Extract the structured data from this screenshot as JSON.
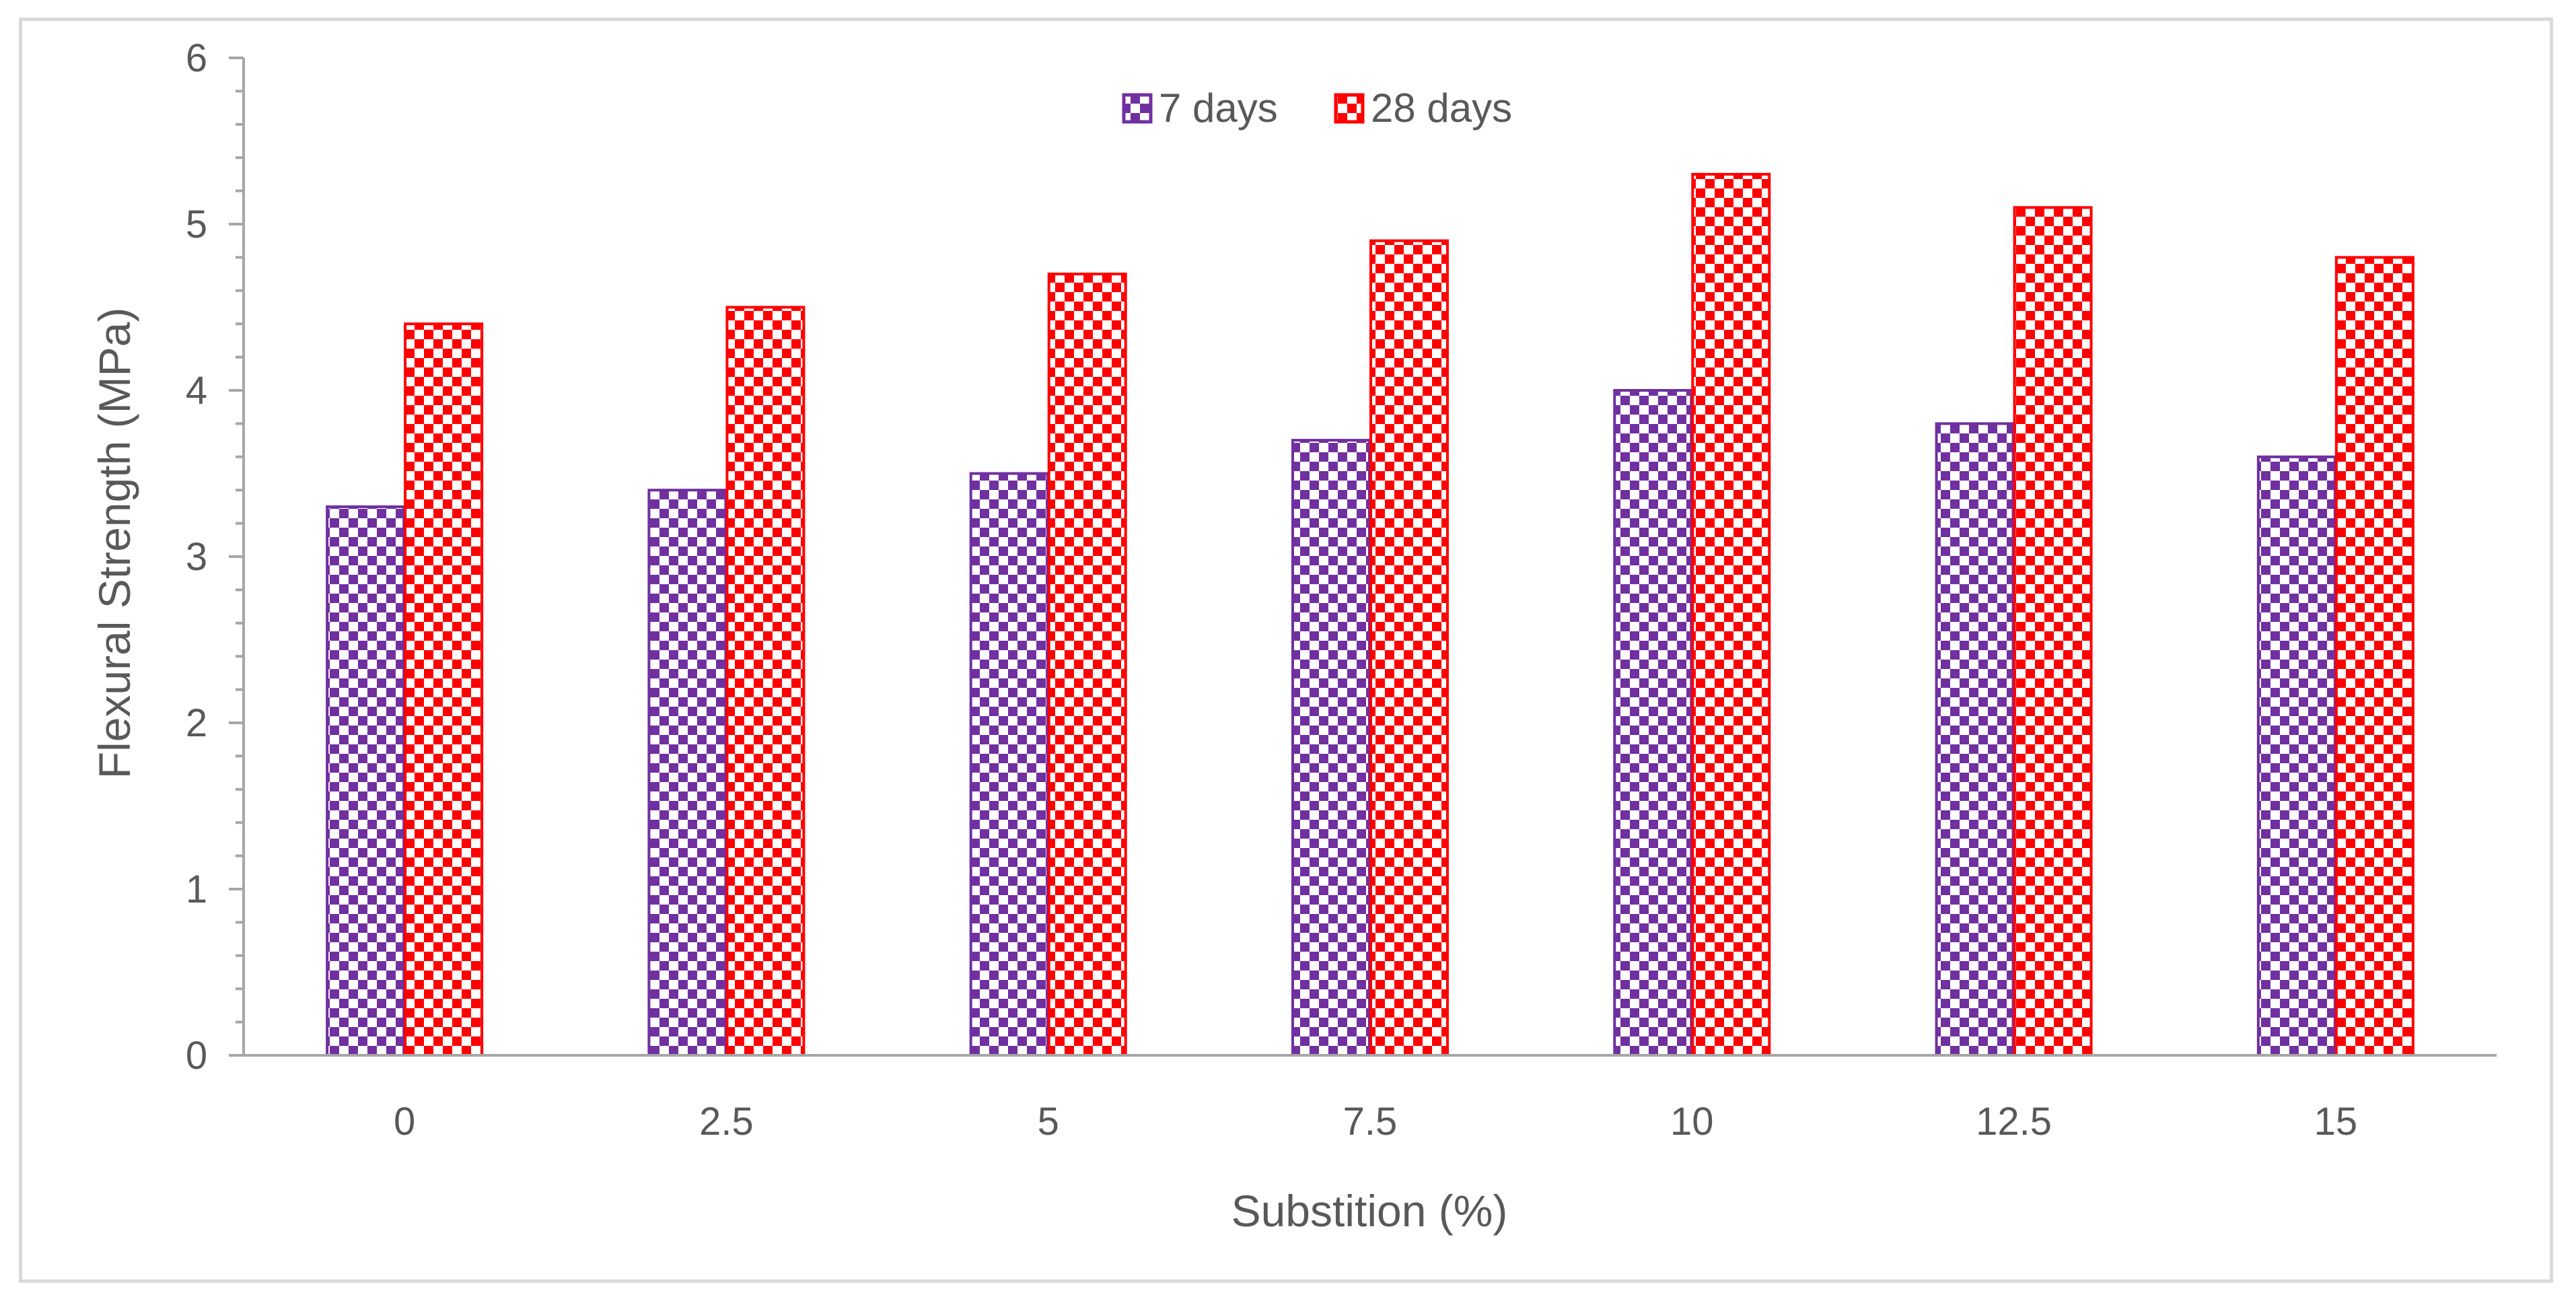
{
  "chart_data": {
    "type": "bar",
    "title": "",
    "xlabel": "Substition (%)",
    "ylabel": "Flexural  Strength (MPa)",
    "categories": [
      "0",
      "2.5",
      "5",
      "7.5",
      "10",
      "12.5",
      "15"
    ],
    "series": [
      {
        "name": "7 days",
        "color": "#7030a0",
        "pattern": "checkerboard",
        "values": [
          3.3,
          3.4,
          3.5,
          3.7,
          4.0,
          3.8,
          3.6
        ]
      },
      {
        "name": "28 days",
        "color": "#ff0000",
        "pattern": "checkerboard",
        "values": [
          4.4,
          4.5,
          4.7,
          4.9,
          5.3,
          5.1,
          4.8
        ]
      }
    ],
    "ylim": [
      0,
      6
    ],
    "yticks": [
      "0",
      "1",
      "2",
      "3",
      "4",
      "5",
      "6"
    ],
    "grid": false,
    "legend_position": "top-center",
    "axis_color": "#a6a6a6",
    "text_color": "#595959"
  }
}
